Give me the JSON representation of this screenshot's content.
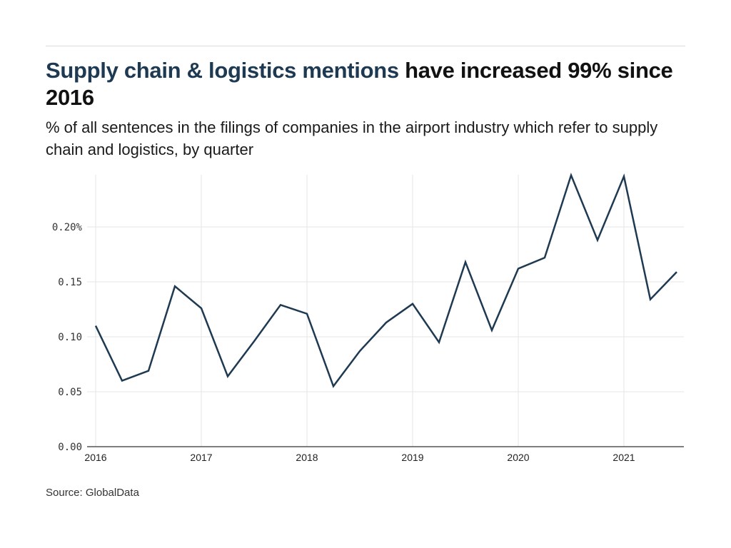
{
  "header": {
    "title_accent": "Supply chain & logistics mentions",
    "title_rest": " have increased 99% since 2016",
    "subtitle": "% of all sentences in the filings of companies in the airport industry which refer to supply chain and logistics, by quarter"
  },
  "footer": {
    "source": "Source: GlobalData"
  },
  "colors": {
    "line": "#1e3a52",
    "title_accent": "#1e3a52",
    "grid": "#e6e6e6",
    "axis": "#555555"
  },
  "chart_data": {
    "type": "line",
    "title": "Supply chain & logistics mentions have increased 99% since 2016",
    "subtitle": "% of all sentences in the filings of companies in the airport industry which refer to supply chain and logistics, by quarter",
    "xlabel": "",
    "ylabel": "",
    "x": [
      "2016 Q1",
      "2016 Q2",
      "2016 Q3",
      "2016 Q4",
      "2017 Q1",
      "2017 Q2",
      "2017 Q3",
      "2017 Q4",
      "2018 Q1",
      "2018 Q2",
      "2018 Q3",
      "2018 Q4",
      "2019 Q1",
      "2019 Q2",
      "2019 Q3",
      "2019 Q4",
      "2020 Q1",
      "2020 Q2",
      "2020 Q3",
      "2020 Q4",
      "2021 Q1",
      "2021 Q2",
      "2021 Q3"
    ],
    "x_numeric": [
      2016.0,
      2016.25,
      2016.5,
      2016.75,
      2017.0,
      2017.25,
      2017.5,
      2017.75,
      2018.0,
      2018.25,
      2018.5,
      2018.75,
      2019.0,
      2019.25,
      2019.5,
      2019.75,
      2020.0,
      2020.25,
      2020.5,
      2020.75,
      2021.0,
      2021.25,
      2021.5
    ],
    "series": [
      {
        "name": "Supply chain & logistics mentions (%)",
        "values": [
          0.11,
          0.06,
          0.069,
          0.146,
          0.126,
          0.064,
          0.096,
          0.129,
          0.121,
          0.055,
          0.087,
          0.113,
          0.13,
          0.095,
          0.168,
          0.106,
          0.162,
          0.172,
          0.247,
          0.188,
          0.246,
          0.134,
          0.159
        ]
      }
    ],
    "xlim": [
      2016,
      2021.58
    ],
    "ylim": [
      0,
      0.248
    ],
    "x_ticks": [
      2016,
      2017,
      2018,
      2019,
      2020,
      2021
    ],
    "x_tick_labels": [
      "2016",
      "2017",
      "2018",
      "2019",
      "2020",
      "2021"
    ],
    "y_ticks": [
      0,
      0.05,
      0.1,
      0.15,
      0.2
    ],
    "y_tick_labels": [
      "0.00",
      "0.05",
      "0.10",
      "0.15",
      "0.20%"
    ],
    "grid": true,
    "legend": "none",
    "source": "Source: GlobalData"
  }
}
